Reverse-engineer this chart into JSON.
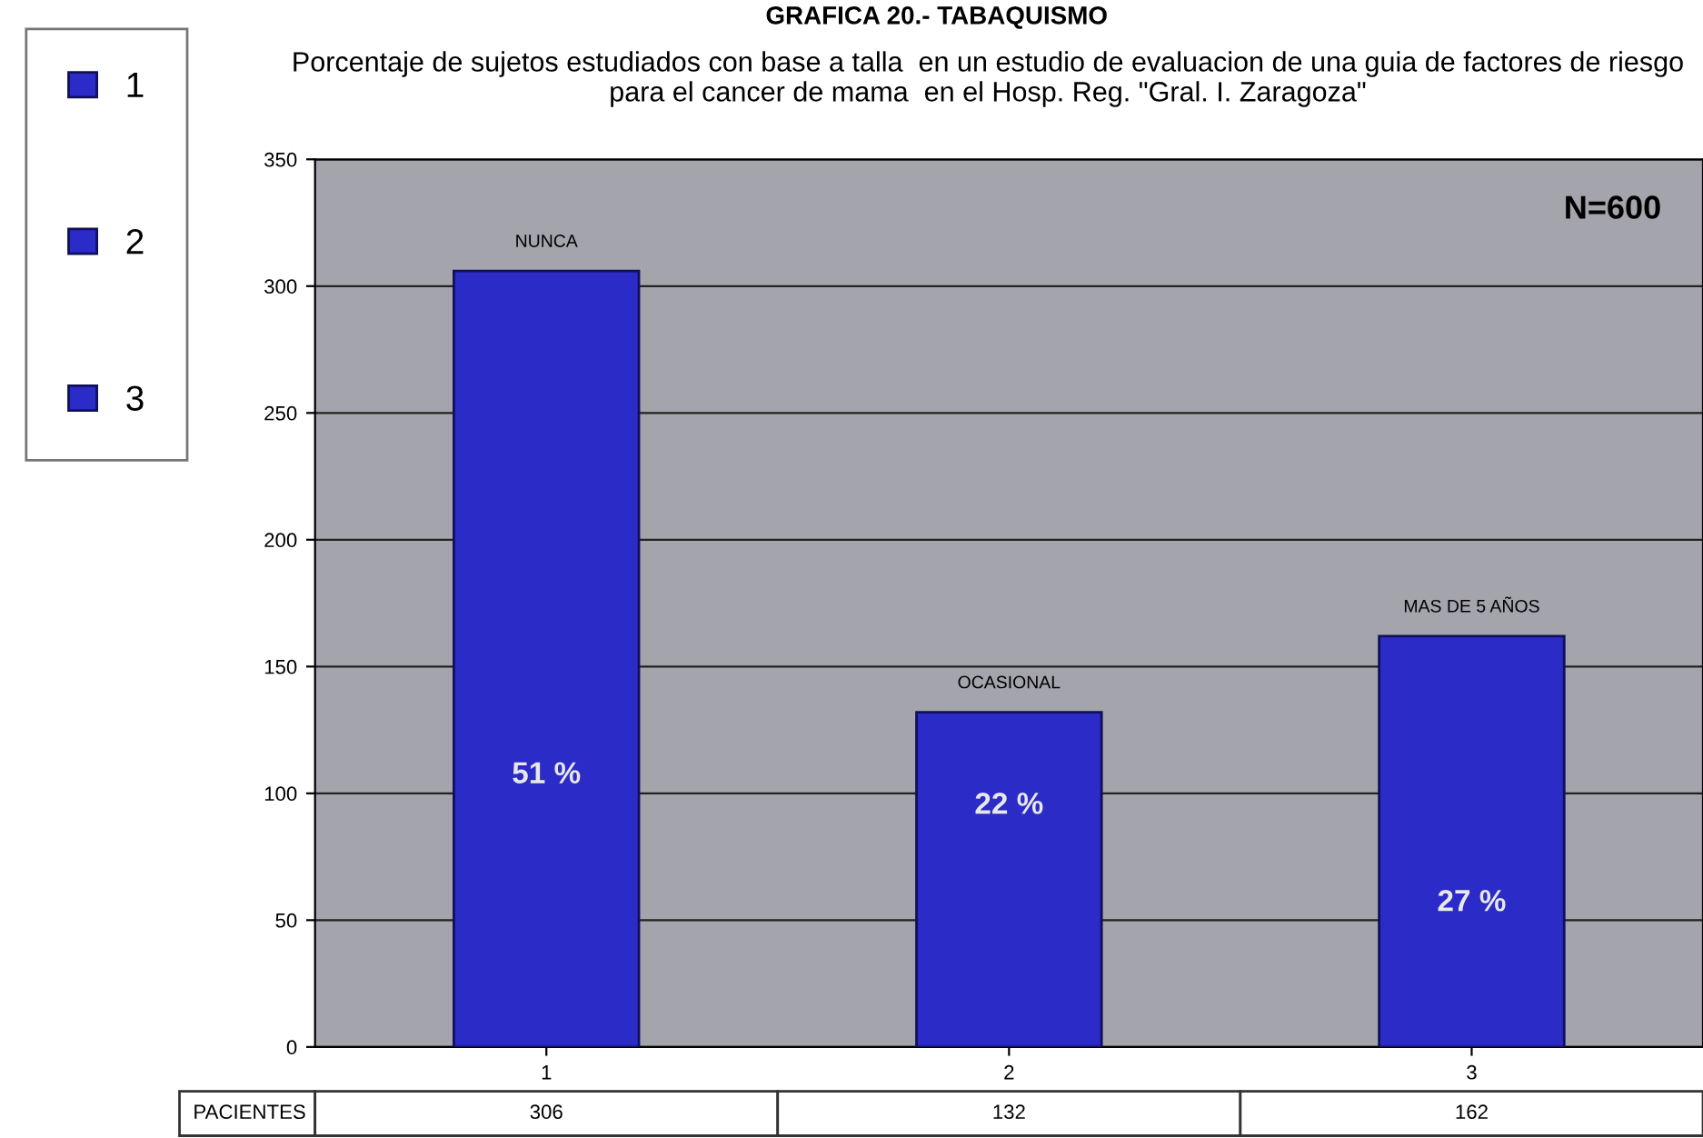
{
  "chart_data": {
    "type": "bar",
    "title": "GRAFICA 20.- TABAQUISMO",
    "subtitle": "Porcentaje de sujetos estudiados con base a talla  en un estudio de evaluacion de una guia de factores de riesgo para el cancer de mama  en el Hosp. Reg. \"Gral. I. Zaragoza\"",
    "categories": [
      "1",
      "2",
      "3"
    ],
    "series": [
      {
        "name": "PACIENTES",
        "color": "#2b2bc8",
        "values": [
          306,
          132,
          162
        ]
      }
    ],
    "ylim": [
      0,
      350
    ],
    "yticks": [
      0,
      50,
      100,
      150,
      200,
      250,
      300,
      350
    ],
    "grid": "y",
    "legend": "left",
    "data_labels": true,
    "annotations": [
      {
        "text": "NUNCA",
        "x": "1",
        "y": 306
      },
      {
        "text": "OCASIONAL",
        "x": "2",
        "y": 132
      },
      {
        "text": "MAS DE 5 AÑOS",
        "x": "3",
        "y": 162
      },
      "51 %",
      "22 %",
      "27 %",
      "N=600"
    ]
  }
}
